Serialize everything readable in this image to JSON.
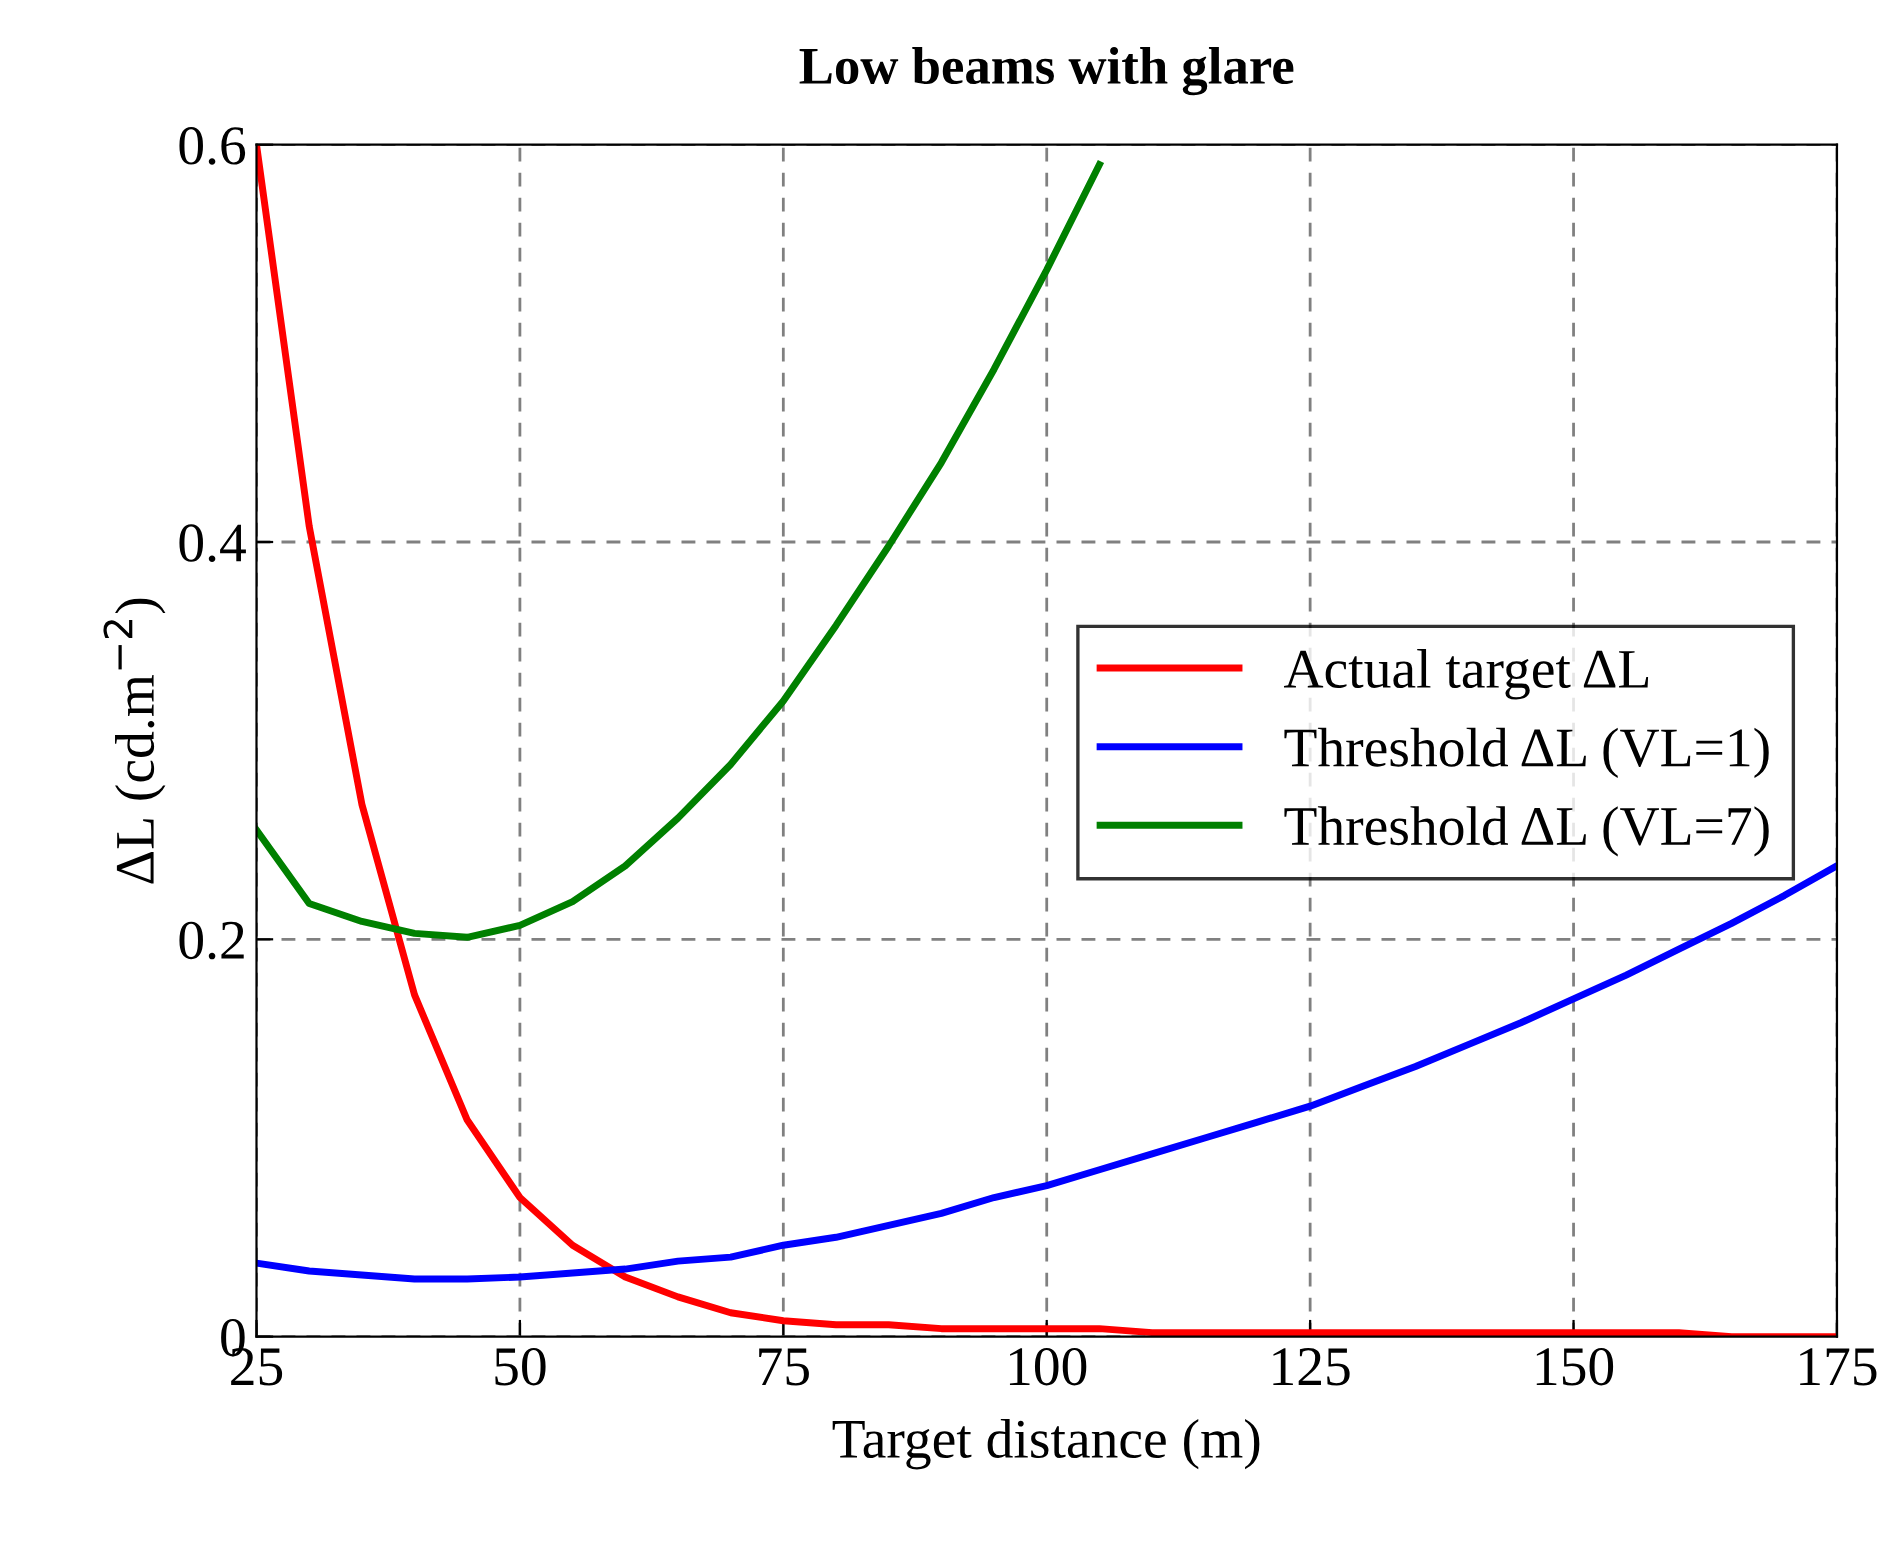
{
  "chart_data": {
    "type": "line",
    "title": "Low beams with glare",
    "xlabel": "Target distance (m)",
    "ylabel": "ΔL (cd.m$^{−2}$)",
    "x": [
      25,
      30,
      35,
      40,
      45,
      50,
      55,
      60,
      65,
      70,
      75,
      80,
      85,
      90,
      95,
      100,
      105,
      110,
      115,
      120,
      125,
      130,
      135,
      140,
      145,
      150,
      155,
      160,
      165,
      170,
      175
    ],
    "series": [
      {
        "name": "Actual target ΔL",
        "color": "#ff0000",
        "values": [
          0.6,
          0.408,
          0.268,
          0.172,
          0.109,
          0.07,
          0.046,
          0.03,
          0.02,
          0.012,
          0.008,
          0.006,
          0.006,
          0.004,
          0.004,
          0.004,
          0.004,
          0.002,
          0.002,
          0.002,
          0.002,
          0.002,
          0.002,
          0.002,
          0.002,
          0.002,
          0.002,
          0.002,
          0,
          0,
          0
        ]
      },
      {
        "name": "Threshold ΔL (VL=1)",
        "color": "#0000ff",
        "values": [
          0.037,
          0.033,
          0.031,
          0.029,
          0.029,
          0.03,
          0.032,
          0.034,
          0.038,
          0.04,
          0.046,
          0.05,
          0.056,
          0.062,
          0.07,
          0.076,
          0.084,
          0.092,
          0.1,
          0.108,
          0.116,
          0.126,
          0.136,
          0.147,
          0.158,
          0.17,
          0.182,
          0.195,
          0.208,
          0.222,
          0.237
        ]
      },
      {
        "name": "Threshold ΔL (VL=7)",
        "color": "#008000",
        "x": [
          25,
          30,
          35,
          40,
          45,
          50,
          55,
          60,
          65,
          70,
          75,
          80,
          85,
          90,
          95,
          100,
          105
        ],
        "values": [
          0.255,
          0.218,
          0.209,
          0.203,
          0.201,
          0.207,
          0.219,
          0.237,
          0.261,
          0.288,
          0.32,
          0.358,
          0.398,
          0.44,
          0.487,
          0.537,
          0.59
        ]
      }
    ],
    "xlim": [
      25,
      175
    ],
    "xticks": [
      25,
      50,
      75,
      100,
      125,
      150,
      175
    ],
    "ylim": [
      0,
      0.6
    ],
    "yticks": [
      0,
      0.2,
      0.4,
      0.6
    ],
    "grid": true,
    "legend": "right",
    "marker": "none",
    "line_style": "solid"
  }
}
